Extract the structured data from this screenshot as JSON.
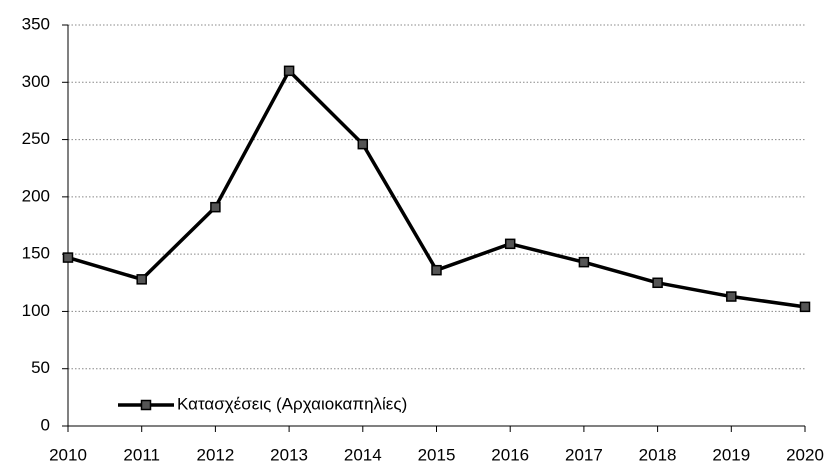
{
  "chart_data": {
    "type": "line",
    "categories": [
      "2010",
      "2011",
      "2012",
      "2013",
      "2014",
      "2015",
      "2016",
      "2017",
      "2018",
      "2019",
      "2020"
    ],
    "series": [
      {
        "name": "Κατασχέσεις (Αρχαιοκαπηλίες)",
        "color": "#000000",
        "values": [
          147,
          128,
          191,
          310,
          246,
          136,
          159,
          143,
          125,
          113,
          104
        ]
      }
    ],
    "ylim": [
      0,
      350
    ],
    "yticks": [
      0,
      50,
      100,
      150,
      200,
      250,
      300,
      350
    ],
    "grid": true,
    "legend": "bottom-left"
  }
}
